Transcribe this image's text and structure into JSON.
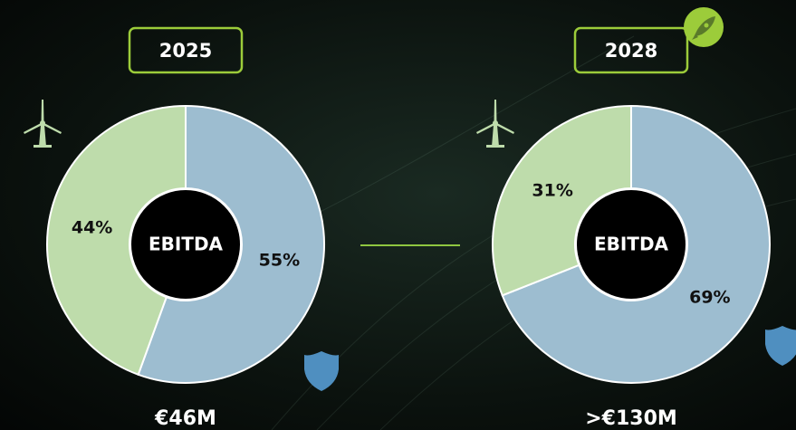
{
  "chart_data": [
    {
      "type": "donut",
      "title": "2025",
      "center_label": "EBITDA",
      "total": "€46M",
      "categories": [
        null,
        null
      ],
      "values": [
        55,
        44
      ],
      "value_labels": [
        "55%",
        "44%"
      ],
      "colors": [
        "#9dbdd0",
        "#bedcab"
      ]
    },
    {
      "type": "donut",
      "title": "2028",
      "center_label": "EBITDA",
      "total": ">€130M",
      "categories": [
        null,
        null
      ],
      "values": [
        69,
        31
      ],
      "value_labels": [
        "69%",
        "31%"
      ],
      "colors": [
        "#9dbdd0",
        "#bedcab"
      ]
    }
  ]
}
